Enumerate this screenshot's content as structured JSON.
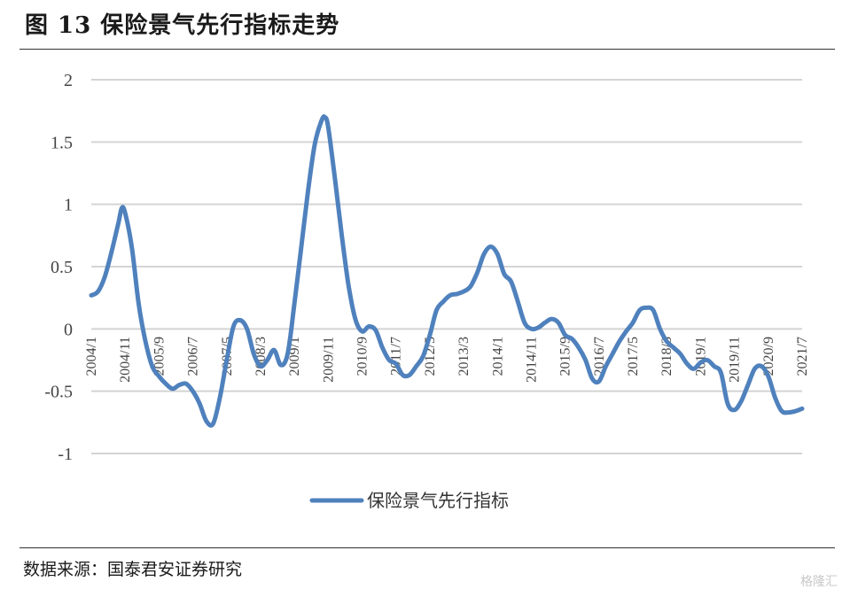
{
  "header": {
    "title": "图 13 保险景气先行指标走势"
  },
  "footer": {
    "source": "数据来源：国泰君安证券研究",
    "watermark": "格隆汇"
  },
  "chart_data": {
    "type": "line",
    "title": "图 13 保险景气先行指标走势",
    "xlabel": "",
    "ylabel": "",
    "ylim": [
      -1,
      2
    ],
    "yticks": [
      2,
      1.5,
      1,
      0.5,
      0,
      -0.5,
      -1
    ],
    "grid": true,
    "legend": "bottom-center",
    "color": "#4f81bd",
    "x_tick_labels": [
      "2004/1",
      "2004/11",
      "2005/9",
      "2006/7",
      "2007/5",
      "2008/3",
      "2009/1",
      "2009/11",
      "2010/9",
      "2011/7",
      "2012/5",
      "2013/3",
      "2014/1",
      "2014/11",
      "2015/9",
      "2016/7",
      "2017/5",
      "2018/3",
      "2019/1",
      "2019/11",
      "2020/9",
      "2021/7"
    ],
    "series": [
      {
        "name": "保险景气先行指标",
        "points": [
          [
            "2004/1",
            0.27
          ],
          [
            "2004/3",
            0.3
          ],
          [
            "2004/5",
            0.42
          ],
          [
            "2004/7",
            0.62
          ],
          [
            "2004/9",
            0.85
          ],
          [
            "2004/10",
            0.97
          ],
          [
            "2004/11",
            0.93
          ],
          [
            "2005/1",
            0.65
          ],
          [
            "2005/3",
            0.2
          ],
          [
            "2005/5",
            -0.1
          ],
          [
            "2005/7",
            -0.3
          ],
          [
            "2005/9",
            -0.38
          ],
          [
            "2005/11",
            -0.44
          ],
          [
            "2006/1",
            -0.48
          ],
          [
            "2006/3",
            -0.45
          ],
          [
            "2006/5",
            -0.44
          ],
          [
            "2006/7",
            -0.5
          ],
          [
            "2006/9",
            -0.6
          ],
          [
            "2006/11",
            -0.74
          ],
          [
            "2007/1",
            -0.76
          ],
          [
            "2007/3",
            -0.55
          ],
          [
            "2007/5",
            -0.25
          ],
          [
            "2007/7",
            0.02
          ],
          [
            "2007/9",
            0.07
          ],
          [
            "2007/11",
            0.0
          ],
          [
            "2008/1",
            -0.2
          ],
          [
            "2008/3",
            -0.3
          ],
          [
            "2008/5",
            -0.25
          ],
          [
            "2008/7",
            -0.17
          ],
          [
            "2008/9",
            -0.29
          ],
          [
            "2008/11",
            -0.2
          ],
          [
            "2009/1",
            0.2
          ],
          [
            "2009/3",
            0.65
          ],
          [
            "2009/5",
            1.1
          ],
          [
            "2009/7",
            1.48
          ],
          [
            "2009/9",
            1.67
          ],
          [
            "2009/10",
            1.7
          ],
          [
            "2009/11",
            1.62
          ],
          [
            "2010/1",
            1.2
          ],
          [
            "2010/3",
            0.75
          ],
          [
            "2010/5",
            0.35
          ],
          [
            "2010/7",
            0.08
          ],
          [
            "2010/9",
            -0.02
          ],
          [
            "2010/11",
            0.02
          ],
          [
            "2011/1",
            -0.01
          ],
          [
            "2011/3",
            -0.15
          ],
          [
            "2011/5",
            -0.25
          ],
          [
            "2011/7",
            -0.28
          ],
          [
            "2011/9",
            -0.37
          ],
          [
            "2011/11",
            -0.37
          ],
          [
            "2012/1",
            -0.3
          ],
          [
            "2012/3",
            -0.22
          ],
          [
            "2012/5",
            -0.05
          ],
          [
            "2012/7",
            0.15
          ],
          [
            "2012/9",
            0.22
          ],
          [
            "2012/11",
            0.27
          ],
          [
            "2013/1",
            0.28
          ],
          [
            "2013/3",
            0.3
          ],
          [
            "2013/5",
            0.34
          ],
          [
            "2013/7",
            0.45
          ],
          [
            "2013/9",
            0.6
          ],
          [
            "2013/11",
            0.66
          ],
          [
            "2014/1",
            0.6
          ],
          [
            "2014/3",
            0.44
          ],
          [
            "2014/5",
            0.38
          ],
          [
            "2014/7",
            0.22
          ],
          [
            "2014/9",
            0.05
          ],
          [
            "2014/11",
            0.0
          ],
          [
            "2015/1",
            0.01
          ],
          [
            "2015/3",
            0.05
          ],
          [
            "2015/5",
            0.08
          ],
          [
            "2015/7",
            0.05
          ],
          [
            "2015/9",
            -0.05
          ],
          [
            "2015/11",
            -0.08
          ],
          [
            "2016/1",
            -0.15
          ],
          [
            "2016/3",
            -0.25
          ],
          [
            "2016/5",
            -0.4
          ],
          [
            "2016/7",
            -0.42
          ],
          [
            "2016/9",
            -0.3
          ],
          [
            "2016/11",
            -0.2
          ],
          [
            "2017/1",
            -0.1
          ],
          [
            "2017/3",
            -0.02
          ],
          [
            "2017/5",
            0.05
          ],
          [
            "2017/7",
            0.15
          ],
          [
            "2017/9",
            0.17
          ],
          [
            "2017/11",
            0.15
          ],
          [
            "2018/1",
            0.0
          ],
          [
            "2018/3",
            -0.1
          ],
          [
            "2018/5",
            -0.15
          ],
          [
            "2018/7",
            -0.2
          ],
          [
            "2018/9",
            -0.28
          ],
          [
            "2018/11",
            -0.32
          ],
          [
            "2019/1",
            -0.27
          ],
          [
            "2019/3",
            -0.25
          ],
          [
            "2019/5",
            -0.3
          ],
          [
            "2019/7",
            -0.35
          ],
          [
            "2019/9",
            -0.6
          ],
          [
            "2019/11",
            -0.65
          ],
          [
            "2020/1",
            -0.58
          ],
          [
            "2020/3",
            -0.45
          ],
          [
            "2020/5",
            -0.32
          ],
          [
            "2020/7",
            -0.3
          ],
          [
            "2020/9",
            -0.38
          ],
          [
            "2020/11",
            -0.55
          ],
          [
            "2021/1",
            -0.66
          ],
          [
            "2021/3",
            -0.67
          ],
          [
            "2021/5",
            -0.66
          ],
          [
            "2021/7",
            -0.64
          ]
        ]
      }
    ]
  }
}
